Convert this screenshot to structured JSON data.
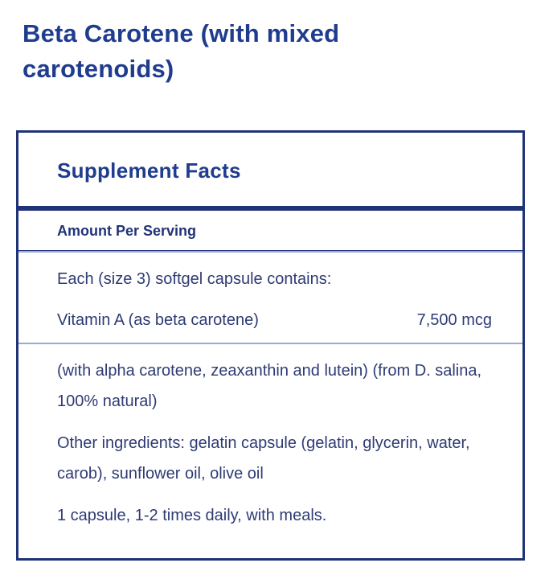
{
  "page": {
    "title": "Beta Carotene (with mixed carotenoids)"
  },
  "panel": {
    "header": "Supplement Facts",
    "amount_per_serving_label": "Amount Per Serving",
    "serving_intro": "Each (size 3) softgel capsule contains:",
    "nutrient": {
      "name": "Vitamin A (as beta carotene)",
      "amount": "7,500 mcg"
    },
    "nutrient_note": "(with alpha carotene, zeaxanthin and lutein) (from D. salina, 100% natural)",
    "other_ingredients": "Other ingredients: gelatin capsule (gelatin, glycerin, water, carob), sunflower oil, olive oil",
    "directions": "1 capsule, 1-2 times daily, with meals."
  },
  "colors": {
    "navy": "#203377",
    "title-blue": "#1f3c8e",
    "body-text": "#2e3b74",
    "light-divider": "#9aaad8",
    "bg": "#ffffff"
  }
}
